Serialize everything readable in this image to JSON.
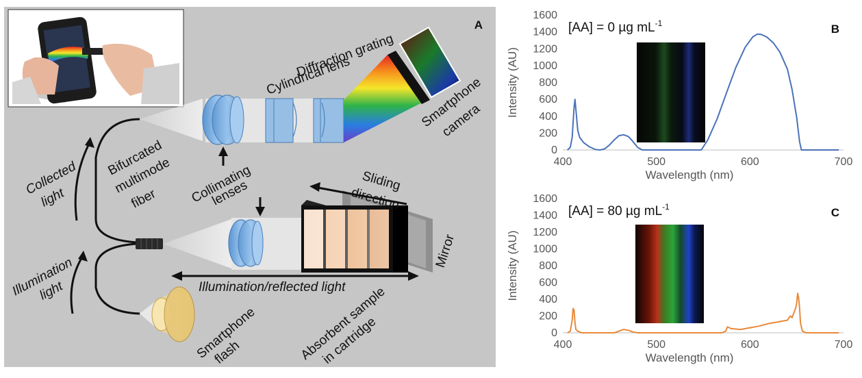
{
  "diagram": {
    "panel_label": "A",
    "labels": {
      "cylindrical_lens": "Cylindrical lens",
      "diffraction_grating": "Diffraction grating",
      "smartphone_camera_1": "Smartphone",
      "smartphone_camera_2": "camera",
      "collected_light_1": "Collected",
      "collected_light_2": "light",
      "bifurcated_1": "Bifurcated",
      "bifurcated_2": "multimode",
      "bifurcated_3": "fiber",
      "collimating_1": "Collimating",
      "collimating_2": "lenses",
      "sliding_1": "Sliding",
      "sliding_2": "direction",
      "mirror": "Mirror",
      "illumination_light_1": "Illumination",
      "illumination_light_2": "light",
      "illumination_reflected": "Illumination/reflected light",
      "smartphone_flash_1": "Smartphone",
      "smartphone_flash_2": "flash",
      "absorbent_1": "Absorbent sample",
      "absorbent_2": "in cartridge"
    },
    "colors": {
      "background": "#c6c6c6",
      "lens_blue": "#7fb0df",
      "flash_yellow": "#e8c878"
    }
  },
  "chart_data": [
    {
      "type": "line",
      "panel_label": "B",
      "annotation_prefix": "[AA] = 0 µg mL",
      "annotation_sup": "-1",
      "xlabel": "Wavelength  (nm)",
      "ylabel": "Intensity  (AU)",
      "xlim": [
        400,
        700
      ],
      "ylim": [
        0,
        1600
      ],
      "xticks": [
        400,
        500,
        600,
        700
      ],
      "yticks": [
        0,
        200,
        400,
        600,
        800,
        1000,
        1200,
        1400,
        1600
      ],
      "grid": false,
      "legend": "none",
      "color": "#4a72b8",
      "series": [
        {
          "x": [
            405,
            408,
            410,
            412,
            413,
            414,
            416,
            418,
            422,
            428,
            435,
            440,
            445,
            450,
            455,
            460,
            465,
            470,
            475,
            480,
            485,
            490,
            500,
            520,
            540,
            548,
            555,
            565,
            575,
            585,
            595,
            603,
            608,
            612,
            618,
            625,
            632,
            640,
            645,
            650,
            653,
            655,
            660,
            680,
            695
          ],
          "y": [
            0,
            30,
            150,
            500,
            600,
            480,
            230,
            150,
            90,
            40,
            5,
            0,
            15,
            60,
            120,
            170,
            180,
            160,
            100,
            30,
            0,
            0,
            0,
            0,
            0,
            0,
            120,
            370,
            680,
            980,
            1220,
            1340,
            1375,
            1370,
            1340,
            1270,
            1160,
            960,
            720,
            380,
            100,
            0,
            0,
            0,
            0
          ]
        }
      ]
    },
    {
      "type": "line",
      "panel_label": "C",
      "annotation_prefix": "[AA] = 80 µg mL",
      "annotation_sup": "-1",
      "xlabel": "Wavelength  (nm)",
      "ylabel": "Intensity  (AU)",
      "xlim": [
        400,
        700
      ],
      "ylim": [
        0,
        1600
      ],
      "xticks": [
        400,
        500,
        600,
        700
      ],
      "yticks": [
        0,
        200,
        400,
        600,
        800,
        1000,
        1200,
        1400,
        1600
      ],
      "grid": false,
      "legend": "none",
      "color": "#e8893a",
      "series": [
        {
          "x": [
            405,
            408,
            410,
            411,
            412,
            413,
            414,
            416,
            418,
            420,
            425,
            440,
            455,
            460,
            465,
            470,
            475,
            480,
            500,
            520,
            540,
            560,
            570,
            574,
            576,
            580,
            590,
            600,
            610,
            620,
            630,
            640,
            643,
            645,
            647,
            649,
            650,
            651,
            652,
            653,
            654,
            656,
            660,
            680,
            695
          ],
          "y": [
            0,
            20,
            150,
            290,
            270,
            120,
            40,
            20,
            10,
            0,
            0,
            0,
            0,
            20,
            40,
            30,
            10,
            0,
            0,
            0,
            0,
            0,
            0,
            20,
            70,
            50,
            40,
            60,
            80,
            110,
            130,
            150,
            200,
            180,
            240,
            300,
            360,
            470,
            420,
            300,
            120,
            20,
            0,
            0,
            0
          ]
        }
      ]
    }
  ]
}
